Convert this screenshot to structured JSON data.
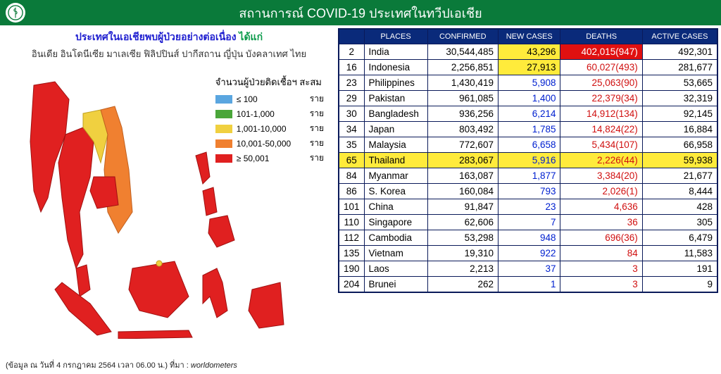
{
  "header": {
    "title": "สถานการณ์ COVID-19 ประเทศในทวีปเอเชีย"
  },
  "left": {
    "subtitle_blue": "ประเทศในเอเชียพบผู้ป่วยอย่างต่อเนื่อง",
    "subtitle_green": "ได้แก่",
    "countries_line": "อินเดีย อินโดนีเซีย มาเลเซีย ฟิลิปปินส์ ปากีสถาน ญี่ปุ่น บังคลาเทศ ไทย",
    "legend_title": "จำนวนผู้ป่วยติดเชื้อฯ สะสม",
    "legend": [
      {
        "color": "#5aa6e0",
        "label": "≤ 100",
        "unit": "ราย"
      },
      {
        "color": "#4aa63a",
        "label": "101-1,000",
        "unit": "ราย"
      },
      {
        "color": "#f0d040",
        "label": "1,001-10,000",
        "unit": "ราย"
      },
      {
        "color": "#f08030",
        "label": "10,001-50,000",
        "unit": "ราย"
      },
      {
        "color": "#e02020",
        "label": "≥ 50,001",
        "unit": "ราย"
      }
    ],
    "map": {
      "colors": {
        "red": "#e02020",
        "orange": "#f08030",
        "yellow": "#f0d040"
      }
    },
    "footnote_prefix": "(ข้อมูล ณ วันที่ 4 กรกฎาคม 2564 เวลา 06.00 น.) ที่มา : ",
    "footnote_source": "worldometers"
  },
  "table": {
    "headers": [
      "",
      "PLACES",
      "CONFIRMED",
      "NEW CASES",
      "DEATHS",
      "ACTIVE CASES"
    ],
    "rows": [
      {
        "rank": "2",
        "place": "India",
        "confirmed": "30,544,485",
        "new": "43,296",
        "new_hl": "yellow",
        "deaths": "402,015(947)",
        "deaths_hl": "red",
        "active": "492,301"
      },
      {
        "rank": "16",
        "place": "Indonesia",
        "confirmed": "2,256,851",
        "new": "27,913",
        "new_hl": "yellow",
        "deaths": "60,027(493)",
        "deaths_cls": "red-text",
        "active": "281,677"
      },
      {
        "rank": "23",
        "place": "Philippines",
        "confirmed": "1,430,419",
        "new": "5,908",
        "new_cls": "blue-text",
        "deaths": "25,063(90)",
        "deaths_cls": "red-text",
        "active": "53,665"
      },
      {
        "rank": "29",
        "place": "Pakistan",
        "confirmed": "961,085",
        "new": "1,400",
        "new_cls": "blue-text",
        "deaths": "22,379(34)",
        "deaths_cls": "red-text",
        "active": "32,319"
      },
      {
        "rank": "30",
        "place": "Bangladesh",
        "confirmed": "936,256",
        "new": "6,214",
        "new_cls": "blue-text",
        "deaths": "14,912(134)",
        "deaths_cls": "red-text",
        "active": "92,145"
      },
      {
        "rank": "34",
        "place": "Japan",
        "confirmed": "803,492",
        "new": "1,785",
        "new_cls": "blue-text",
        "deaths": "14,824(22)",
        "deaths_cls": "red-text",
        "active": "16,884"
      },
      {
        "rank": "35",
        "place": "Malaysia",
        "confirmed": "772,607",
        "new": "6,658",
        "new_cls": "blue-text",
        "deaths": "5,434(107)",
        "deaths_cls": "red-text",
        "active": "66,958"
      },
      {
        "rank": "65",
        "place": "Thailand",
        "confirmed": "283,067",
        "new": "5,916",
        "new_cls": "blue-text",
        "deaths": "2,226(44)",
        "deaths_cls": "red-text",
        "active": "59,938",
        "row_hl": true
      },
      {
        "rank": "84",
        "place": "Myanmar",
        "confirmed": "163,087",
        "new": "1,877",
        "new_cls": "blue-text",
        "deaths": "3,384(20)",
        "deaths_cls": "red-text",
        "active": "21,677"
      },
      {
        "rank": "86",
        "place": "S. Korea",
        "confirmed": "160,084",
        "new": "793",
        "new_cls": "blue-text",
        "deaths": "2,026(1)",
        "deaths_cls": "red-text",
        "active": "8,444"
      },
      {
        "rank": "101",
        "place": "China",
        "confirmed": "91,847",
        "new": "23",
        "new_cls": "blue-text",
        "deaths": "4,636",
        "deaths_cls": "red-text",
        "active": "428"
      },
      {
        "rank": "110",
        "place": "Singapore",
        "confirmed": "62,606",
        "new": "7",
        "new_cls": "blue-text",
        "deaths": "36",
        "deaths_cls": "red-text",
        "active": "305"
      },
      {
        "rank": "112",
        "place": "Cambodia",
        "confirmed": "53,298",
        "new": "948",
        "new_cls": "blue-text",
        "deaths": "696(36)",
        "deaths_cls": "red-text",
        "active": "6,479"
      },
      {
        "rank": "135",
        "place": "Vietnam",
        "confirmed": "19,310",
        "new": "922",
        "new_cls": "blue-text",
        "deaths": "84",
        "deaths_cls": "red-text",
        "active": "11,583"
      },
      {
        "rank": "190",
        "place": "Laos",
        "confirmed": "2,213",
        "new": "37",
        "new_cls": "blue-text",
        "deaths": "3",
        "deaths_cls": "red-text",
        "active": "191"
      },
      {
        "rank": "204",
        "place": "Brunei",
        "confirmed": "262",
        "new": "1",
        "new_cls": "blue-text",
        "deaths": "3",
        "deaths_cls": "red-text",
        "active": "9"
      }
    ]
  }
}
